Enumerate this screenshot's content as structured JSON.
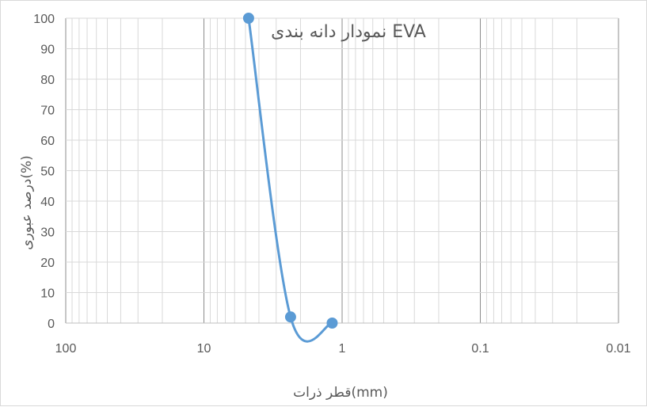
{
  "chart_data": {
    "type": "scatter",
    "title": "نمودار دانه بندی EVA",
    "xlabel": "قطر ذرات(mm)",
    "ylabel": "درصد عبوری(%)",
    "x_scale": "log",
    "x_reversed": true,
    "xlim": [
      100,
      0.01
    ],
    "ylim": [
      0,
      100
    ],
    "x_ticks": [
      "100",
      "10",
      "1",
      "0.1",
      "0.01"
    ],
    "y_ticks": [
      "0",
      "10",
      "20",
      "30",
      "40",
      "50",
      "60",
      "70",
      "80",
      "90",
      "100"
    ],
    "grid": true,
    "series": [
      {
        "x": [
          4.75,
          2.36,
          1.18
        ],
        "y": [
          100,
          2,
          0
        ],
        "color": "#5b9bd5",
        "smooth": true,
        "markers": true
      }
    ]
  }
}
